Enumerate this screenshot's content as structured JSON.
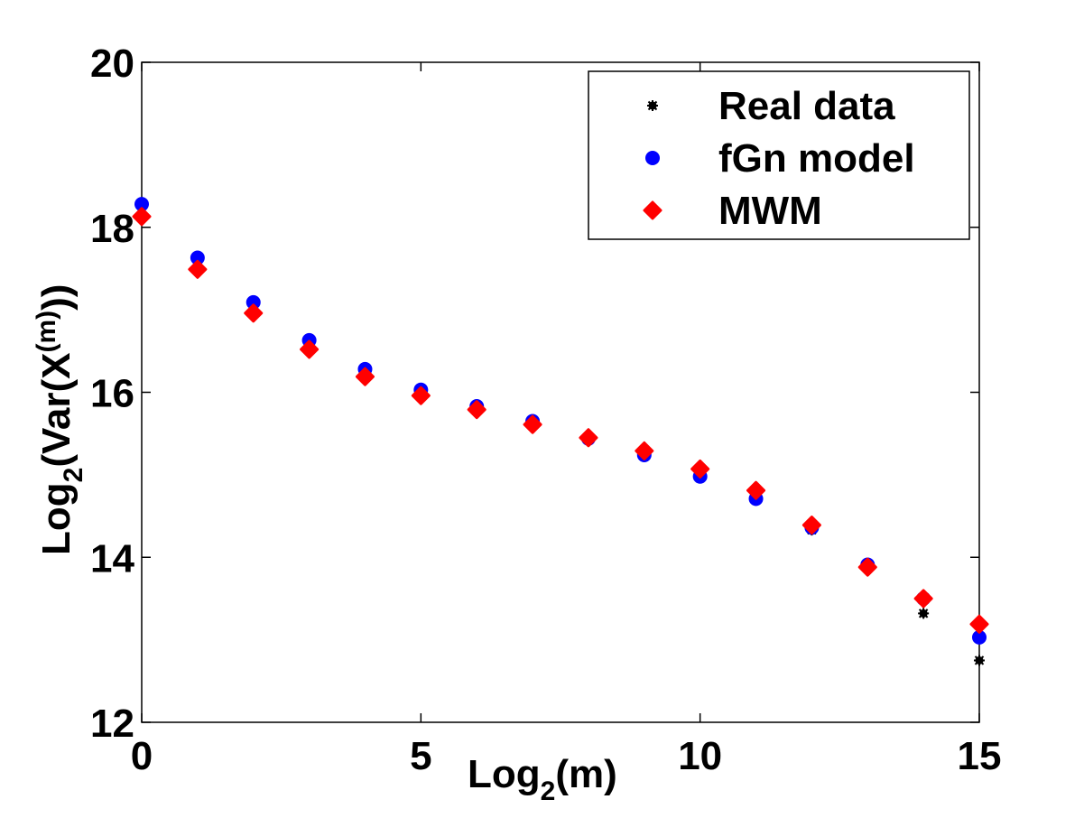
{
  "chart_data": {
    "type": "scatter",
    "title": "",
    "xlabel": "Log2(m)",
    "xlabel_parts": {
      "base": "Log",
      "sub": "2",
      "rest": "(m)"
    },
    "ylabel": "Log2(Var(X^(m)))",
    "ylabel_parts": {
      "base": "Log",
      "sub": "2",
      "mid": "(Var(X",
      "sup": "(m)",
      "end": "))"
    },
    "xlim": [
      0,
      15
    ],
    "ylim": [
      12,
      20
    ],
    "xticks": [
      0,
      5,
      10,
      15
    ],
    "yticks": [
      12,
      14,
      16,
      18,
      20
    ],
    "grid": false,
    "legend_position": "top-right",
    "x": [
      0,
      1,
      2,
      3,
      4,
      5,
      6,
      7,
      8,
      9,
      10,
      11,
      12,
      13,
      14,
      15
    ],
    "series": [
      {
        "name": "Real data",
        "marker": "star",
        "color": "#000000",
        "values": [
          18.28,
          17.63,
          17.09,
          16.63,
          16.28,
          16.03,
          15.83,
          15.65,
          15.44,
          15.22,
          14.96,
          14.69,
          14.33,
          13.87,
          13.32,
          12.75
        ]
      },
      {
        "name": "fGn model",
        "marker": "circle",
        "color": "#0000ff",
        "values": [
          18.28,
          17.63,
          17.09,
          16.63,
          16.28,
          16.03,
          15.83,
          15.65,
          15.44,
          15.24,
          14.98,
          14.71,
          14.36,
          13.91,
          13.5,
          13.03
        ]
      },
      {
        "name": "MWM",
        "marker": "diamond",
        "color": "#ff0000",
        "values": [
          18.13,
          17.49,
          16.96,
          16.52,
          16.19,
          15.96,
          15.79,
          15.61,
          15.45,
          15.29,
          15.07,
          14.81,
          14.39,
          13.88,
          13.5,
          13.19
        ]
      }
    ]
  }
}
